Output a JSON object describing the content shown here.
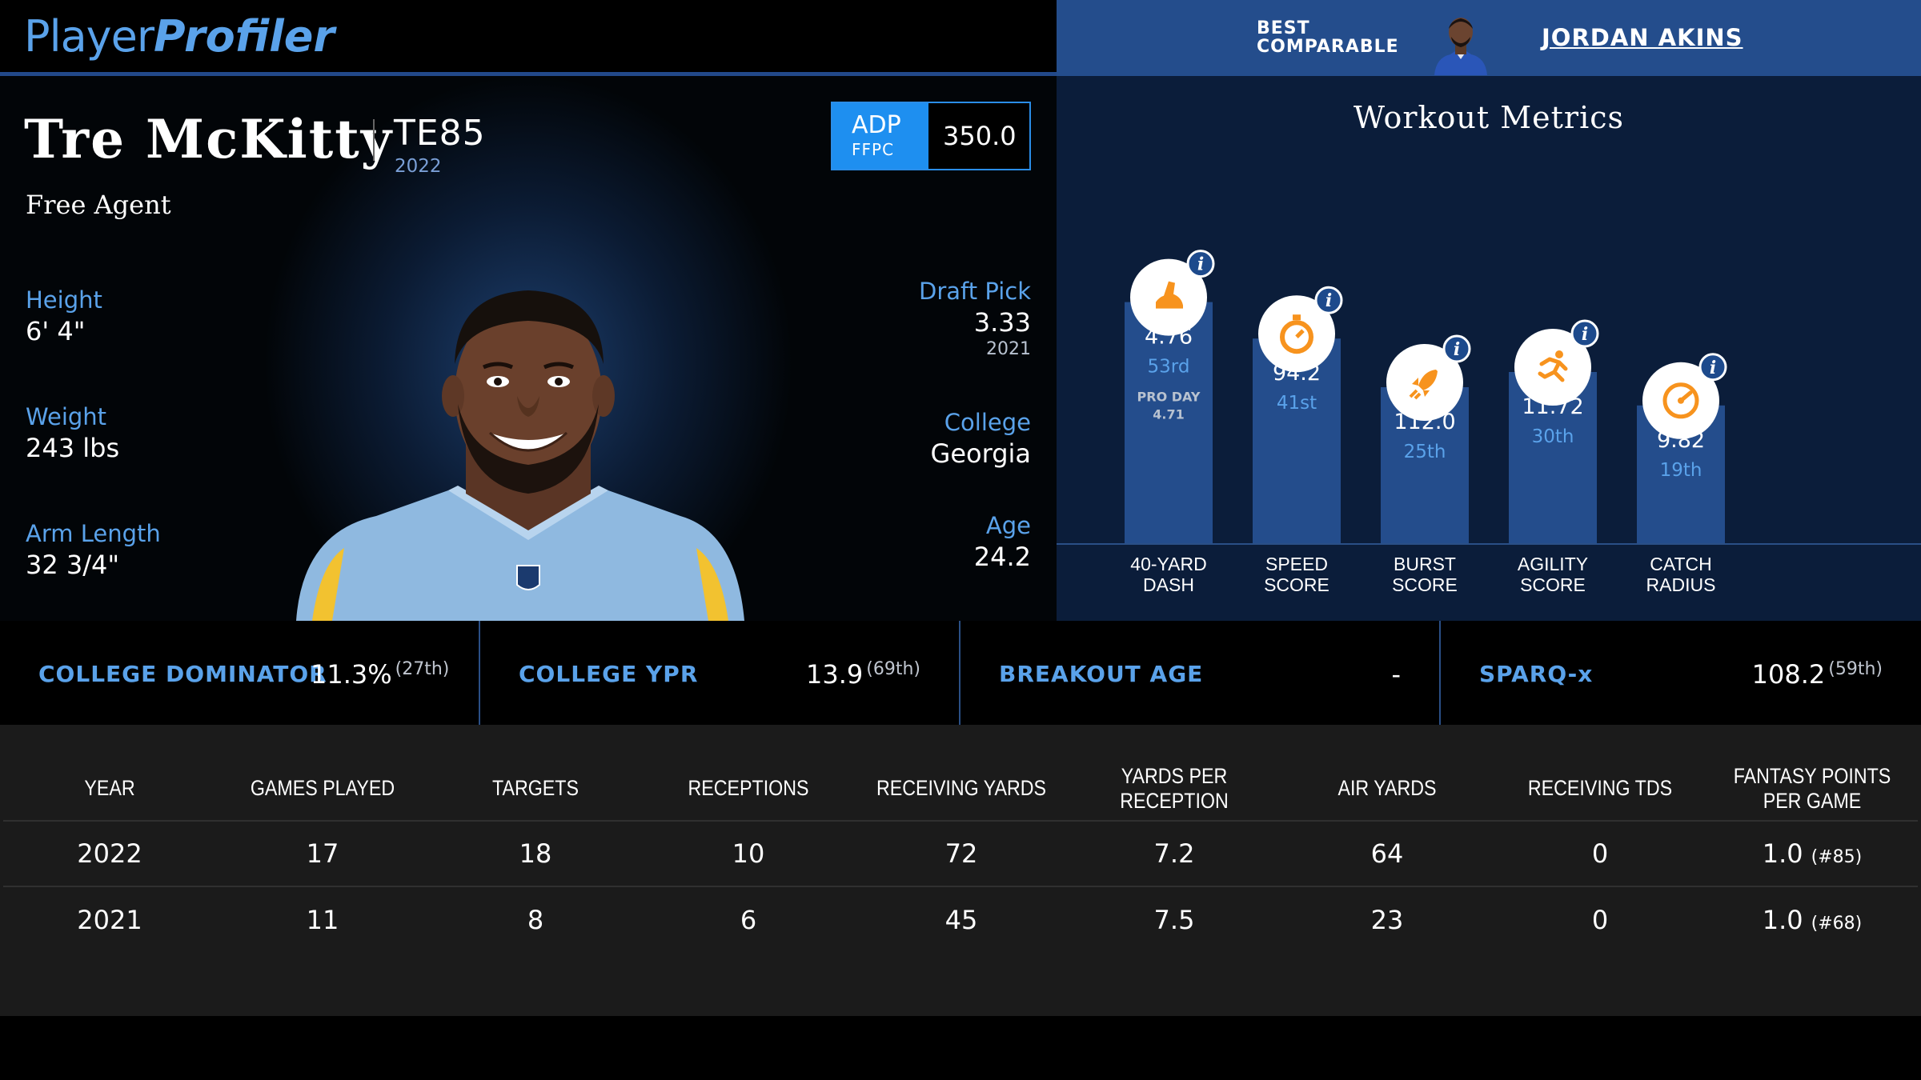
{
  "brand": {
    "name_part1": "Player",
    "name_part2": "Profiler"
  },
  "comparable": {
    "label": "BEST COMPARABLE",
    "name": "JORDAN AKINS"
  },
  "player": {
    "name": "Tre McKitty",
    "position_rank": "TE85",
    "rank_year": "2022",
    "team": "Free Agent",
    "adp": {
      "title": "ADP",
      "source": "FFPC",
      "value": "350.0"
    },
    "left_stats": [
      {
        "label": "Height",
        "value": "6' 4\""
      },
      {
        "label": "Weight",
        "value": "243 lbs"
      },
      {
        "label": "Arm Length",
        "value": "32 3/4\""
      }
    ],
    "right_stats": [
      {
        "label": "Draft Pick",
        "value": "3.33",
        "sub": "2021"
      },
      {
        "label": "College",
        "value": "Georgia",
        "sub": ""
      },
      {
        "label": "Age",
        "value": "24.2",
        "sub": ""
      }
    ]
  },
  "workout": {
    "title": "Workout Metrics",
    "metrics": [
      {
        "name": "40-YARD DASH",
        "value": "4.76",
        "rank": "53rd",
        "percentile": 53,
        "note_label": "PRO DAY",
        "note_value": "4.71",
        "icon": "running-shoe-icon"
      },
      {
        "name": "SPEED SCORE",
        "value": "94.2",
        "rank": "41st",
        "percentile": 41,
        "note_label": "",
        "note_value": "",
        "icon": "stopwatch-icon"
      },
      {
        "name": "BURST SCORE",
        "value": "112.0",
        "rank": "25th",
        "percentile": 25,
        "note_label": "",
        "note_value": "",
        "icon": "rocket-icon"
      },
      {
        "name": "AGILITY SCORE",
        "value": "11.72",
        "rank": "30th",
        "percentile": 30,
        "note_label": "",
        "note_value": "",
        "icon": "runner-icon"
      },
      {
        "name": "CATCH RADIUS",
        "value": "9.82",
        "rank": "19th",
        "percentile": 19,
        "note_label": "",
        "note_value": "",
        "icon": "gauge-icon"
      }
    ],
    "colors": {
      "bar": "#244d8c",
      "icon": "#f7931e",
      "rank": "#5aa2ea"
    }
  },
  "summary": [
    {
      "label": "COLLEGE DOMINATOR",
      "value": "11.3%",
      "rank": "(27th)"
    },
    {
      "label": "COLLEGE YPR",
      "value": "13.9",
      "rank": "(69th)"
    },
    {
      "label": "BREAKOUT AGE",
      "value": "-",
      "rank": ""
    },
    {
      "label": "SPARQ-x",
      "value": "108.2",
      "rank": "(59th)"
    }
  ],
  "stats_table": {
    "headers": [
      "Year",
      "Games Played",
      "Targets",
      "Receptions",
      "Receiving Yards",
      "Yards Per Reception",
      "Air Yards",
      "Receiving TDs",
      "Fantasy Points Per Game"
    ],
    "rows": [
      {
        "year": "2022",
        "games": "17",
        "targets": "18",
        "receptions": "10",
        "yards": "72",
        "ypr": "7.2",
        "air_yards": "64",
        "tds": "0",
        "fppg": "1.0",
        "fppg_rank": "(#85)"
      },
      {
        "year": "2021",
        "games": "11",
        "targets": "8",
        "receptions": "6",
        "yards": "45",
        "ypr": "7.5",
        "air_yards": "23",
        "tds": "0",
        "fppg": "1.0",
        "fppg_rank": "(#68)"
      }
    ]
  }
}
